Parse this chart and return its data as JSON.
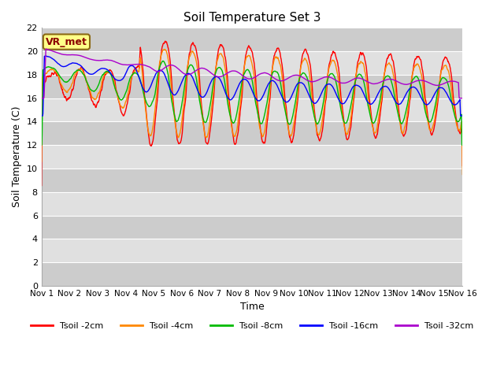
{
  "title": "Soil Temperature Set 3",
  "xlabel": "Time",
  "ylabel": "Soil Temperature (C)",
  "ylim": [
    0,
    22
  ],
  "xlim": [
    0,
    15
  ],
  "xtick_labels": [
    "Nov 1",
    "Nov 2",
    "Nov 3",
    "Nov 4",
    "Nov 5",
    "Nov 6",
    "Nov 7",
    "Nov 8",
    "Nov 9",
    "Nov 10",
    "Nov 11",
    "Nov 12",
    "Nov 13",
    "Nov 14",
    "Nov 15",
    "Nov 16"
  ],
  "ytick_values": [
    0,
    2,
    4,
    6,
    8,
    10,
    12,
    14,
    16,
    18,
    20,
    22
  ],
  "colors": {
    "2cm": "#ff0000",
    "4cm": "#ff8800",
    "8cm": "#00bb00",
    "16cm": "#0000ff",
    "32cm": "#aa00cc"
  },
  "legend_labels": [
    "Tsoil -2cm",
    "Tsoil -4cm",
    "Tsoil -8cm",
    "Tsoil -16cm",
    "Tsoil -32cm"
  ],
  "annotation_text": "VR_met",
  "annotation_box_color": "#ffff88",
  "annotation_border_color": "#8b6914"
}
